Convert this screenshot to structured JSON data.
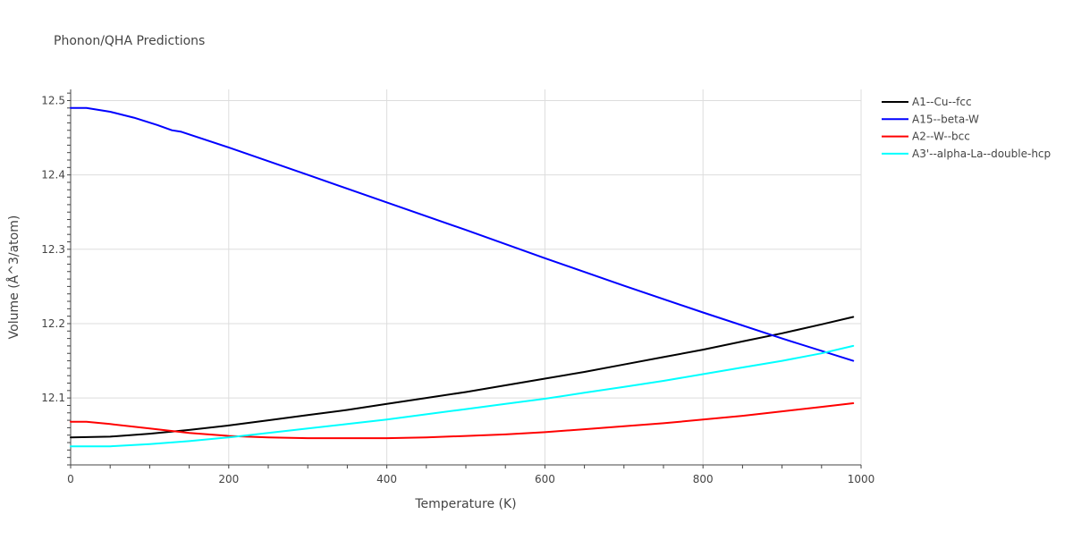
{
  "chart_data": {
    "type": "line",
    "title": "Phonon/QHA Predictions",
    "xlabel": "Temperature (K)",
    "ylabel": "Volume (Å^3/atom)",
    "xlim": [
      0,
      1000
    ],
    "ylim": [
      12.01,
      12.515
    ],
    "x_ticks": [
      0,
      200,
      400,
      600,
      800,
      1000
    ],
    "y_ticks": [
      12.1,
      12.2,
      12.3,
      12.4,
      12.5
    ],
    "x_tick_labels": [
      "0",
      "200",
      "400",
      "600",
      "800",
      "1000"
    ],
    "y_tick_labels": [
      "12.1",
      "12.2",
      "12.3",
      "12.4",
      "12.5"
    ],
    "grid": true,
    "legend_position": "top-right",
    "series": [
      {
        "name": "A1--Cu--fcc",
        "color": "#000000",
        "x": [
          0,
          50,
          100,
          150,
          200,
          250,
          300,
          350,
          400,
          450,
          500,
          550,
          600,
          650,
          700,
          750,
          800,
          850,
          900,
          950,
          990
        ],
        "y": [
          12.047,
          12.048,
          12.052,
          12.057,
          12.063,
          12.07,
          12.077,
          12.084,
          12.092,
          12.1,
          12.108,
          12.117,
          12.126,
          12.135,
          12.145,
          12.155,
          12.165,
          12.176,
          12.187,
          12.199,
          12.209
        ]
      },
      {
        "name": "A15--beta-W",
        "color": "#0000ff",
        "x": [
          0,
          20,
          50,
          80,
          110,
          128,
          140,
          200,
          300,
          400,
          500,
          600,
          700,
          800,
          900,
          990
        ],
        "y": [
          12.49,
          12.49,
          12.485,
          12.477,
          12.467,
          12.46,
          12.458,
          12.437,
          12.4,
          12.363,
          12.326,
          12.288,
          12.251,
          12.215,
          12.18,
          12.15
        ]
      },
      {
        "name": "A2--W--bcc",
        "color": "#ff0000",
        "x": [
          0,
          20,
          50,
          100,
          150,
          200,
          250,
          300,
          350,
          400,
          450,
          500,
          550,
          600,
          650,
          700,
          750,
          800,
          850,
          900,
          950,
          990
        ],
        "y": [
          12.068,
          12.068,
          12.065,
          12.059,
          12.053,
          12.049,
          12.047,
          12.046,
          12.046,
          12.046,
          12.047,
          12.049,
          12.051,
          12.054,
          12.058,
          12.062,
          12.066,
          12.071,
          12.076,
          12.082,
          12.088,
          12.093
        ]
      },
      {
        "name": "A3'--alpha-La--double-hcp",
        "color": "#00ffff",
        "x": [
          0,
          50,
          100,
          150,
          200,
          250,
          300,
          350,
          400,
          450,
          500,
          550,
          600,
          650,
          700,
          750,
          800,
          850,
          900,
          950,
          990
        ],
        "y": [
          12.035,
          12.035,
          12.038,
          12.042,
          12.047,
          12.053,
          12.059,
          12.065,
          12.071,
          12.078,
          12.085,
          12.092,
          12.099,
          12.107,
          12.115,
          12.123,
          12.132,
          12.141,
          12.15,
          12.16,
          12.17
        ]
      }
    ]
  }
}
